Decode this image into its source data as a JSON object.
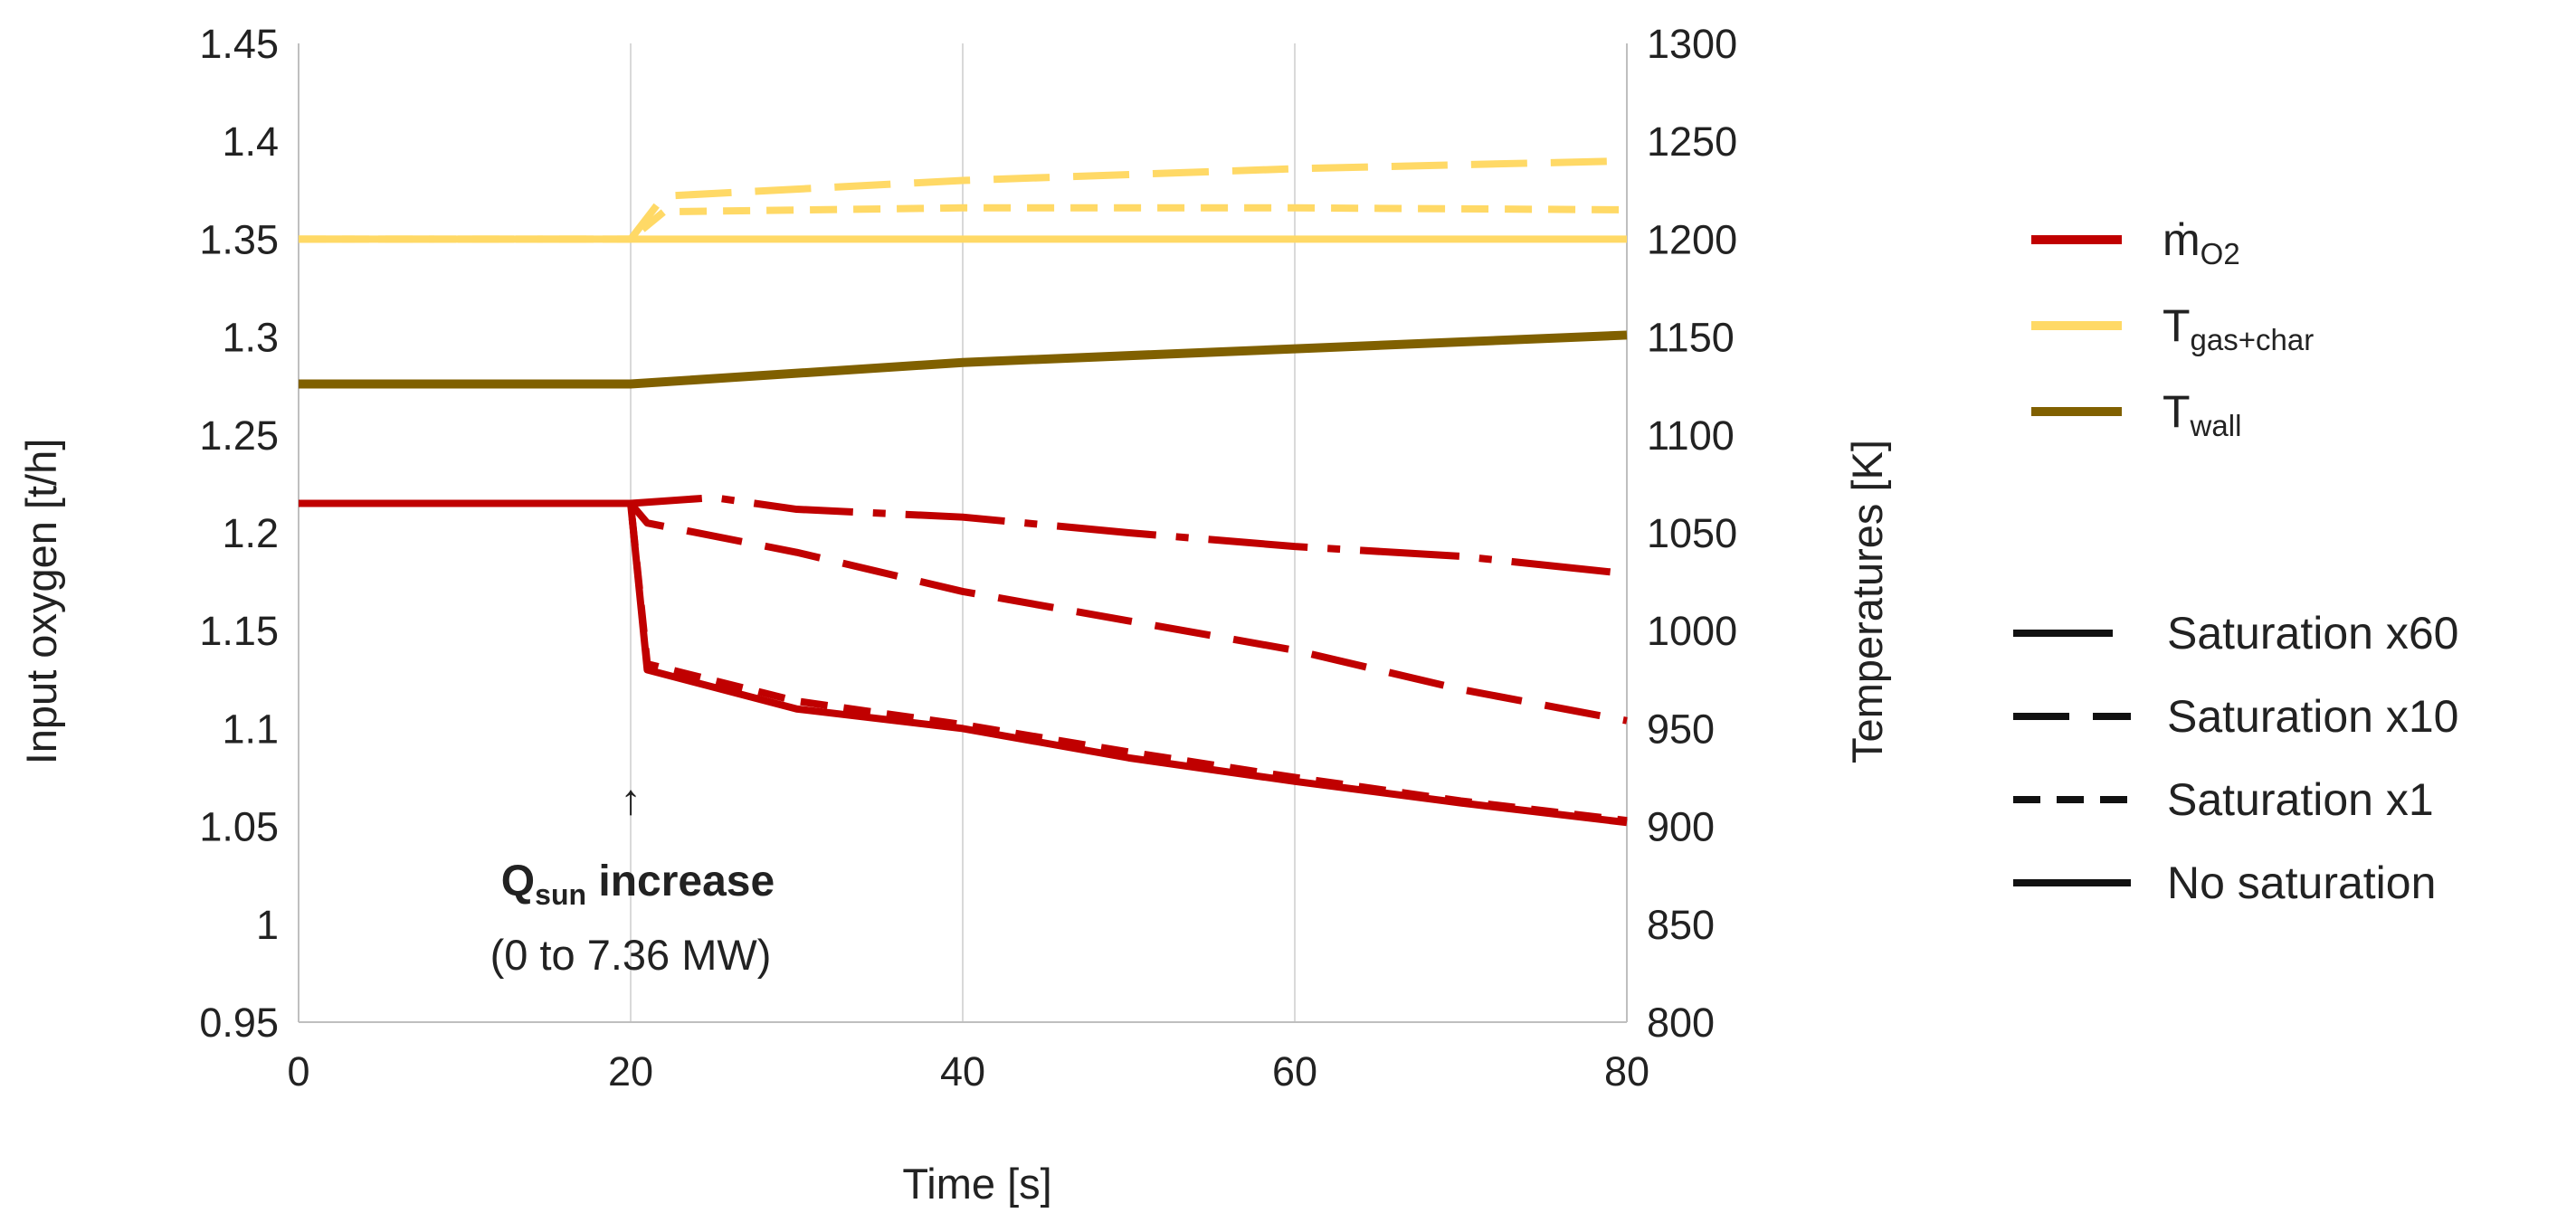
{
  "chart_data": {
    "type": "line",
    "xlabel": "Time [s]",
    "ylabel_left": "Input oxygen [t/h]",
    "ylabel_right": "Temperatures [K]",
    "xlim": [
      0,
      80
    ],
    "ylim_left": [
      0.95,
      1.45
    ],
    "ylim_right": [
      800,
      1300
    ],
    "x_ticks": [
      "0",
      "20",
      "40",
      "60",
      "80"
    ],
    "y_left_ticks": [
      "0.95",
      "1",
      "1.05",
      "1.1",
      "1.15",
      "1.2",
      "1.25",
      "1.3",
      "1.35",
      "1.4",
      "1.45"
    ],
    "y_right_ticks": [
      "800",
      "850",
      "900",
      "950",
      "1000",
      "1050",
      "1100",
      "1150",
      "1200",
      "1250",
      "1300"
    ],
    "grid": "vertical",
    "colors": {
      "m_o2": "#c00000",
      "t_gas_char": "#ffd966",
      "t_wall": "#806000",
      "grid": "#d9d9d9",
      "axis": "#bfbfbf",
      "text": "#222222"
    },
    "variable_legend": [
      {
        "key": "m_o2",
        "main": "ṁ",
        "sub": "O2"
      },
      {
        "key": "t_gas_char",
        "main": "T",
        "sub": "gas+char"
      },
      {
        "key": "t_wall",
        "main": "T",
        "sub": "wall"
      }
    ],
    "style_legend": [
      {
        "key": "x60",
        "label": "Saturation x60"
      },
      {
        "key": "x10",
        "label": "Saturation x10"
      },
      {
        "key": "x1",
        "label": "Saturation x1"
      },
      {
        "key": "none",
        "label": "No saturation"
      }
    ],
    "annotation": {
      "arrow": "↑",
      "main": "Q",
      "sub": "sun",
      "rest": " increase",
      "range": "(0 to 7.36 MW)",
      "x": 20
    },
    "series": [
      {
        "name": "m_o2 No saturation",
        "variable": "m_o2",
        "axis": "left",
        "style": "none",
        "x": [
          0,
          20,
          21,
          30,
          40,
          50,
          60,
          70,
          80
        ],
        "y": [
          1.215,
          1.215,
          1.13,
          1.11,
          1.1,
          1.085,
          1.073,
          1.062,
          1.052
        ]
      },
      {
        "name": "m_o2 Saturation x1",
        "variable": "m_o2",
        "axis": "left",
        "style": "x1",
        "x": [
          0,
          20,
          21,
          30,
          40,
          50,
          60,
          70,
          80
        ],
        "y": [
          1.215,
          1.215,
          1.133,
          1.114,
          1.102,
          1.088,
          1.075,
          1.063,
          1.053
        ]
      },
      {
        "name": "m_o2 Saturation x10",
        "variable": "m_o2",
        "axis": "left",
        "style": "x10",
        "x": [
          0,
          20,
          21,
          30,
          40,
          50,
          60,
          70,
          80
        ],
        "y": [
          1.215,
          1.215,
          1.205,
          1.19,
          1.17,
          1.155,
          1.14,
          1.12,
          1.104
        ]
      },
      {
        "name": "m_o2 Saturation x60",
        "variable": "m_o2",
        "axis": "left",
        "style": "x60",
        "x": [
          0,
          20,
          25,
          30,
          40,
          50,
          60,
          70,
          79
        ],
        "y": [
          1.215,
          1.215,
          1.218,
          1.212,
          1.208,
          1.2,
          1.193,
          1.188,
          1.18
        ]
      },
      {
        "name": "T_gas+char No saturation",
        "variable": "t_gas_char",
        "axis": "right",
        "style": "none",
        "x": [
          0,
          20,
          40,
          60,
          80
        ],
        "y": [
          1200,
          1200,
          1200,
          1200,
          1200
        ]
      },
      {
        "name": "T_gas+char Saturation x1",
        "variable": "t_gas_char",
        "axis": "right",
        "style": "x1",
        "x": [
          0,
          20,
          22,
          40,
          60,
          80
        ],
        "y": [
          1200,
          1200,
          1214,
          1216,
          1216,
          1215
        ]
      },
      {
        "name": "T_gas+char Saturation x10",
        "variable": "t_gas_char",
        "axis": "right",
        "style": "x10",
        "x": [
          0,
          20,
          22,
          40,
          60,
          80
        ],
        "y": [
          1200,
          1200,
          1222,
          1230,
          1236,
          1240
        ]
      },
      {
        "name": "T_wall No saturation",
        "variable": "t_wall",
        "axis": "right",
        "style": "none",
        "x": [
          0,
          20,
          40,
          60,
          80
        ],
        "y": [
          1126,
          1126,
          1137,
          1144,
          1151
        ]
      }
    ]
  }
}
